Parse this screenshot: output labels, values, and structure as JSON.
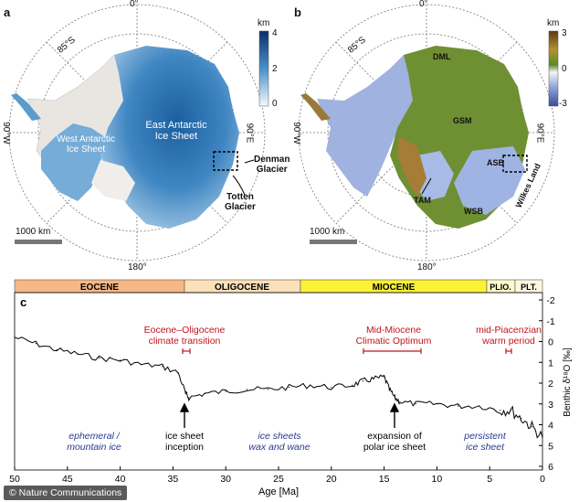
{
  "panel_a": {
    "letter": "a",
    "lat_label": "85°S",
    "top_lon": "0°",
    "left_lon": "90°W",
    "right_lon": "90°E",
    "bottom_lon": "180°",
    "colorbar_unit": "km",
    "colorbar_ticks": [
      "4",
      "2",
      "0"
    ],
    "labels": {
      "east": "East Antarctic\nIce Sheet",
      "west": "West Antarctic\nIce Sheet",
      "denman": "Denman\nGlacier",
      "totten": "Totten\nGlacier"
    },
    "scalebar": "1000 km"
  },
  "panel_b": {
    "letter": "b",
    "lat_label": "85°S",
    "top_lon": "0°",
    "left_lon": "90°W",
    "right_lon": "90°E",
    "bottom_lon": "180°",
    "colorbar_unit": "km",
    "colorbar_ticks": [
      "3",
      "0",
      "-3"
    ],
    "labels": {
      "dml": "DML",
      "gsm": "GSM",
      "asb": "ASB",
      "tam": "TAM",
      "wsb": "WSB",
      "wilkes": "Wilkes Land"
    },
    "scalebar": "1000 km"
  },
  "panel_c": {
    "letter": "c",
    "epochs": [
      "EOCENE",
      "OLIGOCENE",
      "MIOCENE",
      "PLIO.",
      "PLT."
    ],
    "epoch_colors": [
      "#f7b784",
      "#fbe0b8",
      "#fcf135",
      "#fef9c8",
      "#fef6e0"
    ],
    "events": [
      {
        "title": "Eocene–Oligocene\nclimate transition"
      },
      {
        "title": "Mid-Miocene\nClimatic Optimum"
      },
      {
        "title": "mid-Piacenzian\nwarm period"
      }
    ],
    "arrows": [
      "ice sheet\ninception",
      "expansion of\npolar ice sheet"
    ],
    "regimes": [
      "ephemeral /\nmountain ice",
      "ice sheets\nwax and wane",
      "persistent\nice sheet"
    ],
    "xlabel": "Age [Ma]",
    "ylabel": "Benthic δ¹⁸O [‰]",
    "xticks": [
      "50",
      "45",
      "40",
      "35",
      "30",
      "25",
      "20",
      "15",
      "10",
      "5",
      "0"
    ],
    "yticks": [
      "-2",
      "-1",
      "0",
      "1",
      "2",
      "3",
      "4",
      "5",
      "6"
    ]
  },
  "chart_data": {
    "type": "line",
    "title": "",
    "xlabel": "Age [Ma]",
    "ylabel": "Benthic δ¹⁸O [‰]",
    "xlim": [
      50,
      0
    ],
    "ylim": [
      6,
      -2
    ],
    "x": [
      50,
      48,
      46,
      44,
      42,
      40,
      38,
      36,
      34.5,
      33.8,
      33.5,
      32,
      30,
      28,
      26,
      24,
      22,
      20,
      18,
      17,
      16,
      15,
      14.5,
      14,
      13.5,
      12,
      10,
      8,
      6,
      4,
      3,
      2,
      1,
      0
    ],
    "series": [
      {
        "values": [
          -0.2,
          0.1,
          0.4,
          0.6,
          0.8,
          0.9,
          1.1,
          1.2,
          1.5,
          2.5,
          2.7,
          2.5,
          2.4,
          2.3,
          2.3,
          2.2,
          2.1,
          2.2,
          2.1,
          1.9,
          1.8,
          1.7,
          2.3,
          2.7,
          2.9,
          3.0,
          3.0,
          3.1,
          3.1,
          3.3,
          3.3,
          3.7,
          4.1,
          4.6
        ]
      }
    ],
    "grid": false
  },
  "credit": "© Nature Communications"
}
